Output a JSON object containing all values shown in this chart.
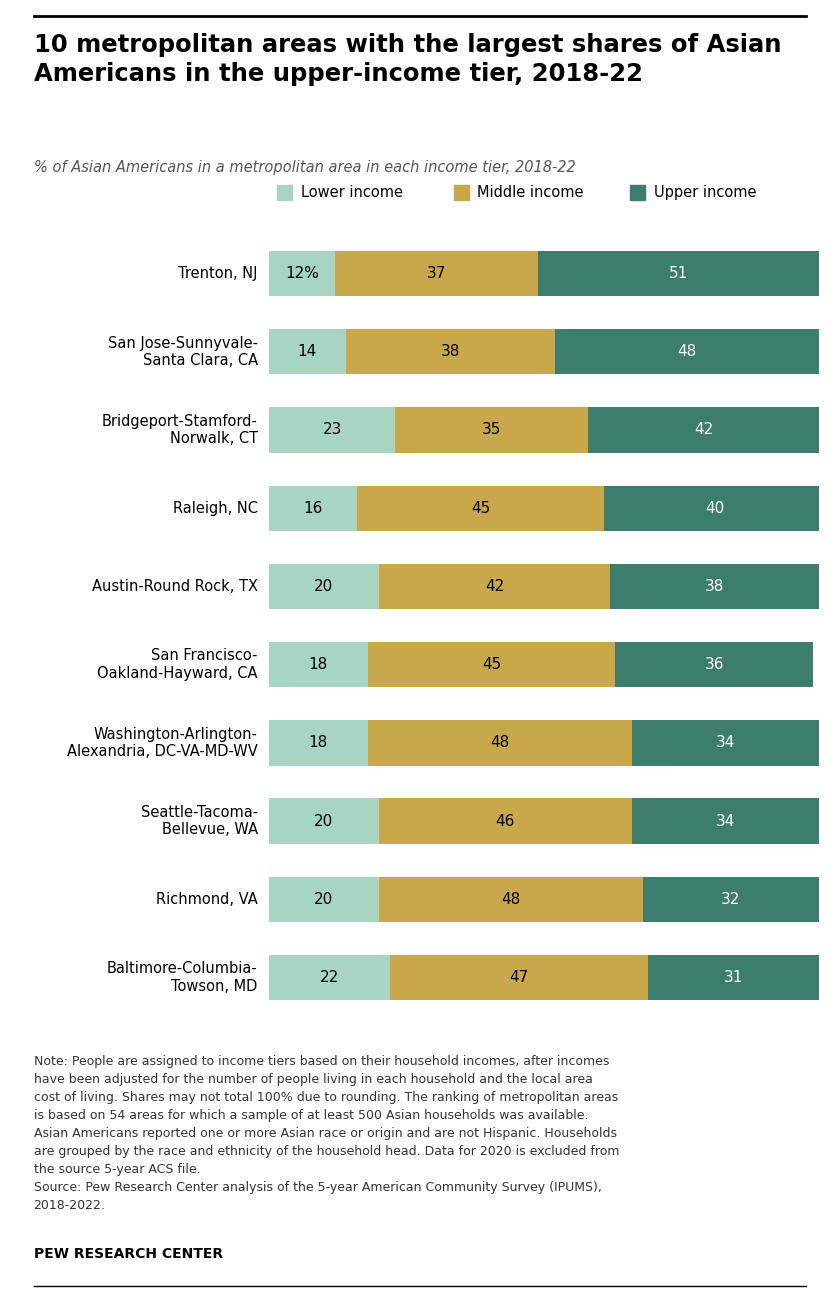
{
  "title": "10 metropolitan areas with the largest shares of Asian\nAmericans in the upper-income tier, 2018-22",
  "subtitle": "% of Asian Americans in a metropolitan area in each income tier, 2018-22",
  "categories": [
    "Trenton, NJ",
    "San Jose-Sunnyvale-\nSanta Clara, CA",
    "Bridgeport-Stamford-\nNorwalk, CT",
    "Raleigh, NC",
    "Austin-Round Rock, TX",
    "San Francisco-\nOakland-Hayward, CA",
    "Washington-Arlington-\nAlexandria, DC-VA-MD-WV",
    "Seattle-Tacoma-\nBellevue, WA",
    "Richmond, VA",
    "Baltimore-Columbia-\nTowson, MD"
  ],
  "lower_income": [
    12,
    14,
    23,
    16,
    20,
    18,
    18,
    20,
    20,
    22
  ],
  "middle_income": [
    37,
    38,
    35,
    45,
    42,
    45,
    48,
    46,
    48,
    47
  ],
  "upper_income": [
    51,
    48,
    42,
    40,
    38,
    36,
    34,
    34,
    32,
    31
  ],
  "lower_label": [
    "12%",
    "14",
    "23",
    "16",
    "20",
    "18",
    "18",
    "20",
    "20",
    "22"
  ],
  "middle_label": [
    "37",
    "38",
    "35",
    "45",
    "42",
    "45",
    "48",
    "46",
    "48",
    "47"
  ],
  "upper_label": [
    "51",
    "48",
    "42",
    "40",
    "38",
    "36",
    "34",
    "34",
    "32",
    "31"
  ],
  "color_lower": "#a8d5c2",
  "color_middle": "#c9a84c",
  "color_upper": "#3d7d6e",
  "legend_labels": [
    "Lower income",
    "Middle income",
    "Upper income"
  ],
  "note": "Note: People are assigned to income tiers based on their household incomes, after incomes\nhave been adjusted for the number of people living in each household and the local area\ncost of living. Shares may not total 100% due to rounding. The ranking of metropolitan areas\nis based on 54 areas for which a sample of at least 500 Asian households was available.\nAsian Americans reported one or more Asian race or origin and are not Hispanic. Households\nare grouped by the race and ethnicity of the household head. Data for 2020 is excluded from\nthe source 5-year ACS file.\nSource: Pew Research Center analysis of the 5-year American Community Survey (IPUMS),\n2018-2022.",
  "source_label": "PEW RESEARCH CENTER",
  "background_color": "#ffffff",
  "bar_height": 0.58,
  "figsize": [
    8.4,
    13.1
  ]
}
